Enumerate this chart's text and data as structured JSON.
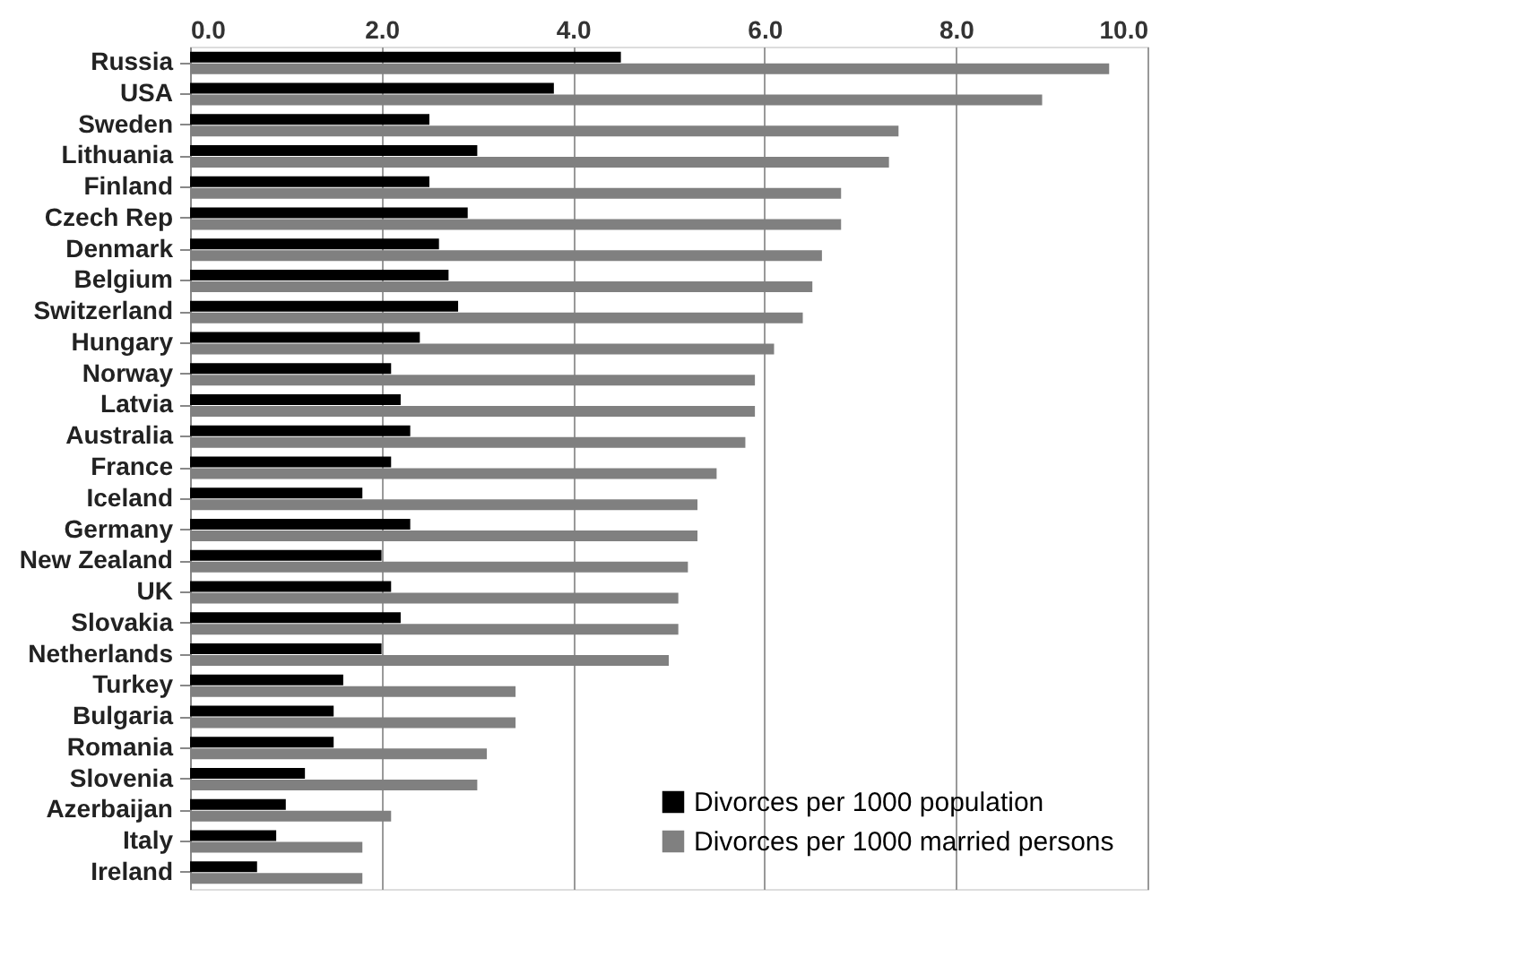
{
  "chart_data": {
    "type": "bar",
    "orientation": "horizontal",
    "categories": [
      "Russia",
      "USA",
      "Sweden",
      "Lithuania",
      "Finland",
      "Czech Rep",
      "Denmark",
      "Belgium",
      "Switzerland",
      "Hungary",
      "Norway",
      "Latvia",
      "Australia",
      "France",
      "Iceland",
      "Germany",
      "New Zealand",
      "UK",
      "Slovakia",
      "Netherlands",
      "Turkey",
      "Bulgaria",
      "Romania",
      "Slovenia",
      "Azerbaijan",
      "Italy",
      "Ireland"
    ],
    "series": [
      {
        "name": "Divorces per 1000 population",
        "color": "#000000",
        "values": [
          4.5,
          3.8,
          2.5,
          3.0,
          2.5,
          2.9,
          2.6,
          2.7,
          2.8,
          2.4,
          2.1,
          2.2,
          2.3,
          2.1,
          1.8,
          2.3,
          2.0,
          2.1,
          2.2,
          2.0,
          1.6,
          1.5,
          1.5,
          1.2,
          1.0,
          0.9,
          0.7
        ]
      },
      {
        "name": "Divorces per 1000 married persons",
        "color": "#808080",
        "values": [
          9.6,
          8.9,
          7.4,
          7.3,
          6.8,
          6.8,
          6.6,
          6.5,
          6.4,
          6.1,
          5.9,
          5.9,
          5.8,
          5.5,
          5.3,
          5.3,
          5.2,
          5.1,
          5.1,
          5.0,
          3.4,
          3.4,
          3.1,
          3.0,
          2.1,
          1.8,
          1.8
        ]
      }
    ],
    "xlim": [
      0,
      10
    ],
    "xticks": [
      {
        "value": 0,
        "label": "0.0"
      },
      {
        "value": 2,
        "label": "2.0"
      },
      {
        "value": 4,
        "label": "4.0"
      },
      {
        "value": 6,
        "label": "6.0"
      },
      {
        "value": 8,
        "label": "8.0"
      },
      {
        "value": 10,
        "label": "10.0"
      }
    ],
    "grid": "x",
    "legend": "bottom right"
  }
}
